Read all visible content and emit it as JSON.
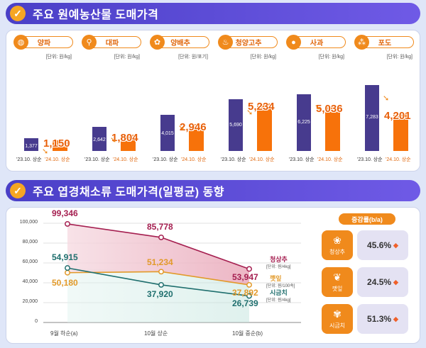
{
  "section1": {
    "check_icon": "✓",
    "title": "주요 원예농산물 도매가격"
  },
  "section2": {
    "check_icon": "✓",
    "title": "주요 엽경채소류 도매가격(일평균) 동향"
  },
  "chart_data": [
    {
      "type": "bar",
      "title": "주요 원예농산물 도매가격",
      "x_labels": [
        "'23.10. 상순",
        "'24.10. 상순"
      ],
      "products": [
        {
          "name": "양파",
          "icon": "onion-icon",
          "glyph": "◍",
          "unit": "[단위: 원/kg]",
          "values": [
            1377,
            1150
          ],
          "labels": [
            "1,377",
            "1,150"
          ]
        },
        {
          "name": "대파",
          "icon": "leek-icon",
          "glyph": "⚲",
          "unit": "[단위: 원/kg]",
          "values": [
            2642,
            1804
          ],
          "labels": [
            "2,642",
            "1,804"
          ]
        },
        {
          "name": "양배추",
          "icon": "cabbage-icon",
          "glyph": "✿",
          "unit": "[단위: 원/포기]",
          "values": [
            4015,
            2946
          ],
          "labels": [
            "4,015",
            "2,946"
          ]
        },
        {
          "name": "청양고추",
          "icon": "pepper-icon",
          "glyph": "♨",
          "unit": "[단위: 원/kg]",
          "values": [
            5690,
            5234
          ],
          "labels": [
            "5,690",
            "5,234"
          ]
        },
        {
          "name": "사과",
          "icon": "apple-icon",
          "glyph": "●",
          "unit": "[단위: 원/kg]",
          "values": [
            6225,
            5036
          ],
          "labels": [
            "6,225",
            "5,036"
          ]
        },
        {
          "name": "포도",
          "icon": "grape-icon",
          "glyph": "⁂",
          "unit": "[단위: 원/kg]",
          "values": [
            7283,
            4201
          ],
          "labels": [
            "7,283",
            "4,201"
          ]
        }
      ],
      "colors": {
        "old": "#473b8e",
        "new": "#f7720a"
      }
    },
    {
      "type": "line",
      "title": "주요 엽경채소류 도매가격(일평균) 동향",
      "categories": [
        "9월 하순(a)",
        "10월 상순",
        "10월 중순(b)"
      ],
      "yticks": [
        "100,000",
        "80,000",
        "60,000",
        "40,000",
        "20,000",
        "0"
      ],
      "ylim": [
        0,
        100000
      ],
      "series": [
        {
          "name": "청상추",
          "unit": "[단위: 원/4kg]",
          "color": "#a51f50",
          "values": [
            99346,
            85778,
            53947
          ],
          "labels": [
            "99,346",
            "85,778",
            "53,947"
          ]
        },
        {
          "name": "깻잎",
          "unit": "[단위: 원/100속]",
          "color": "#e29a2a",
          "values": [
            50180,
            51234,
            37892
          ],
          "labels": [
            "50,180",
            "51,234",
            "37,892"
          ]
        },
        {
          "name": "시금치",
          "unit": "[단위: 원/4kg]",
          "color": "#1f6f6e",
          "values": [
            54915,
            37920,
            26739
          ],
          "labels": [
            "54,915",
            "37,920",
            "26,739"
          ]
        }
      ],
      "rate_header": "증감률(b/a)",
      "rates": [
        {
          "name": "청상추",
          "icon": "lettuce-icon",
          "glyph": "❀",
          "value": "45.6%",
          "dir": "down"
        },
        {
          "name": "깻잎",
          "icon": "perilla-leaf-icon",
          "glyph": "❦",
          "value": "24.5%",
          "dir": "down"
        },
        {
          "name": "시금치",
          "icon": "spinach-icon",
          "glyph": "✾",
          "value": "51.3%",
          "dir": "down"
        }
      ]
    }
  ]
}
